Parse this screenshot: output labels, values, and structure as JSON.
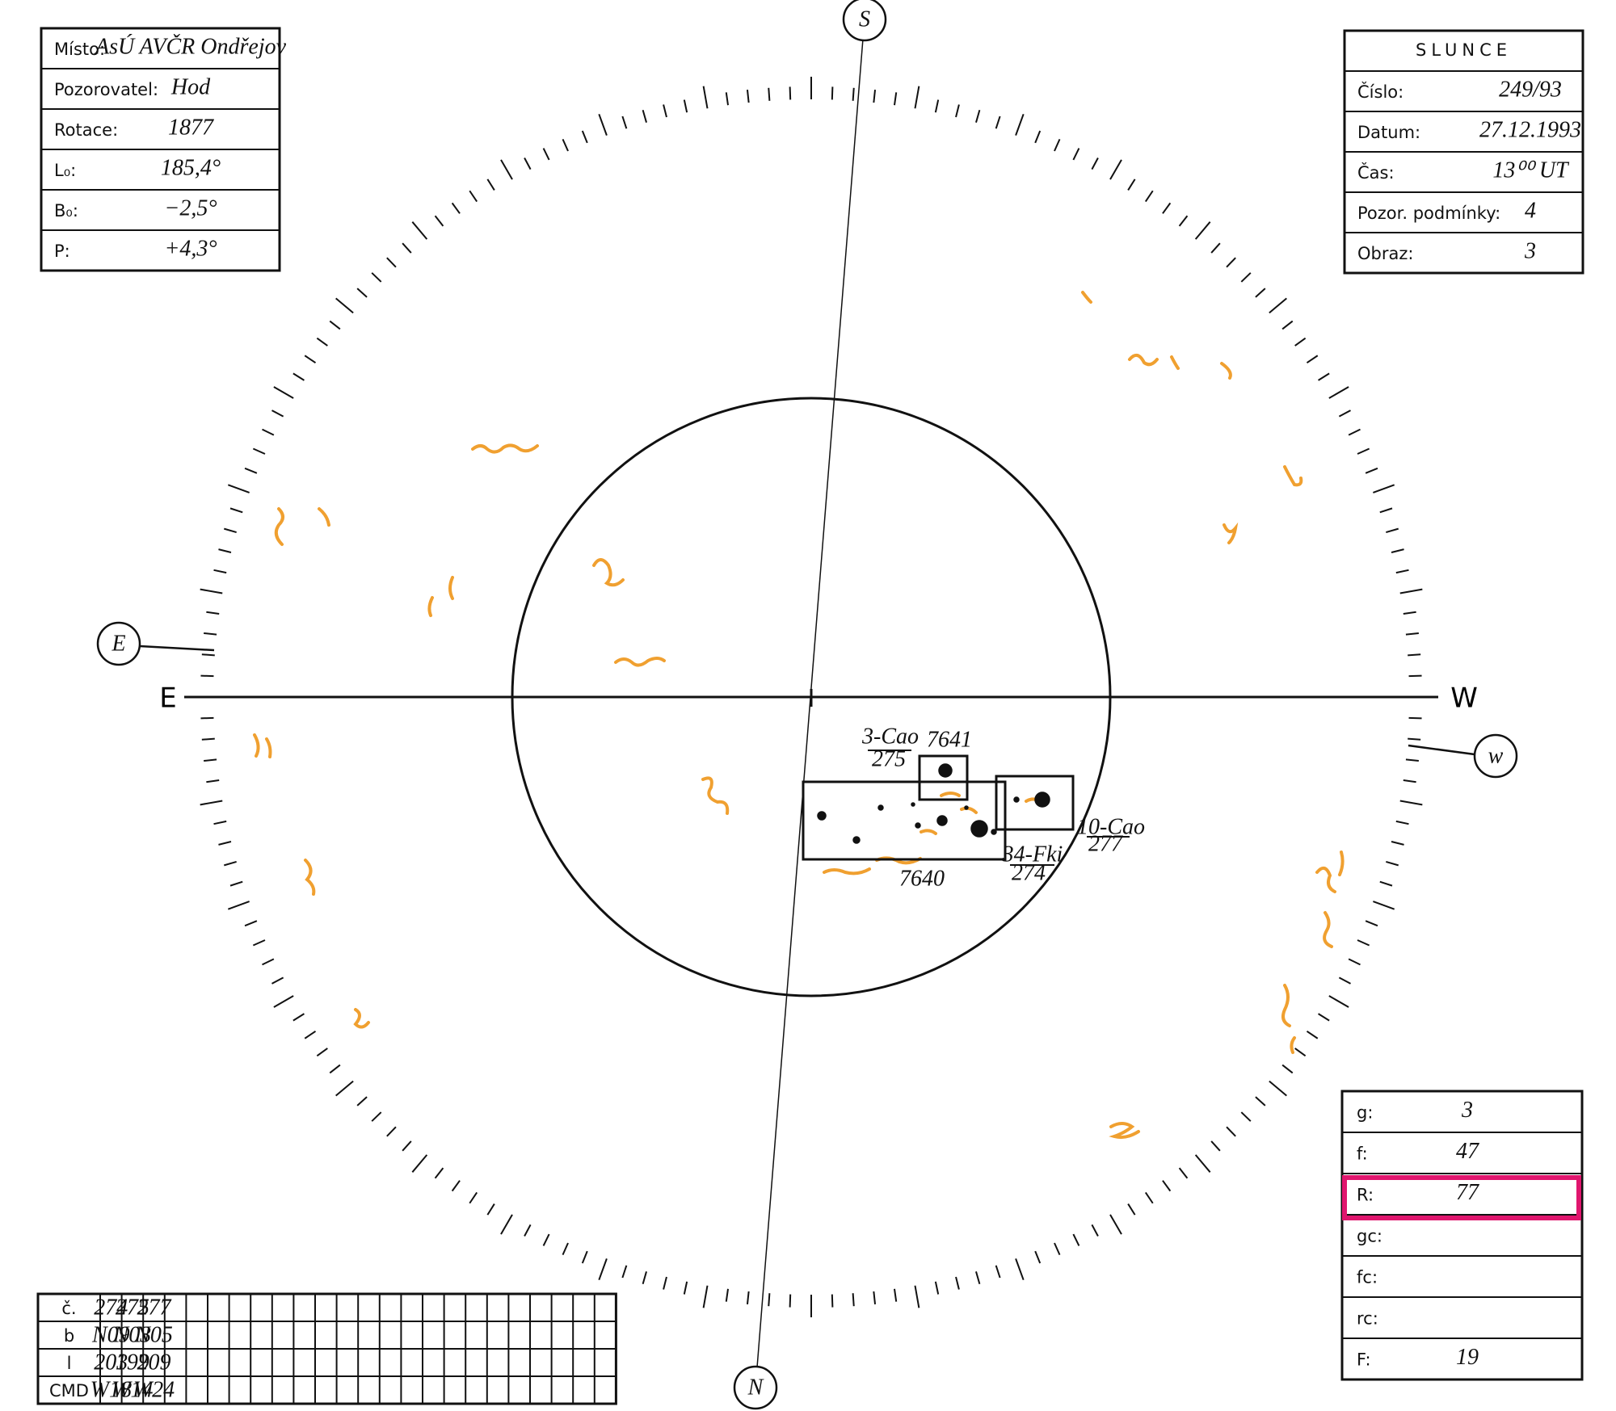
{
  "left_box": {
    "rows": [
      {
        "label": "Místo:",
        "value": "AsÚ AVČR Ondřejov"
      },
      {
        "label": "Pozorovatel:",
        "value": "Hod"
      },
      {
        "label": "Rotace:",
        "value": "1877"
      },
      {
        "label": "L₀:",
        "value": "185,4°"
      },
      {
        "label": "B₀:",
        "value": "−2,5°"
      },
      {
        "label": "P:",
        "value": "+4,3°"
      }
    ]
  },
  "right_box": {
    "title": "SLUNCE",
    "rows": [
      {
        "label": "Číslo:",
        "value": "249/93"
      },
      {
        "label": "Datum:",
        "value": "27.12.1993"
      },
      {
        "label": "Čas:",
        "value": "13⁰⁰ UT"
      },
      {
        "label": "Pozor. podmínky:",
        "value": "4"
      },
      {
        "label": "Obraz:",
        "value": "3"
      }
    ]
  },
  "stats_box": {
    "rows": [
      {
        "label": "g:",
        "value": "3"
      },
      {
        "label": "f:",
        "value": "47"
      },
      {
        "label": "R:",
        "value": "77"
      },
      {
        "label": "gc:",
        "value": null
      },
      {
        "label": "fc:",
        "value": null
      },
      {
        "label": "rc:",
        "value": null
      },
      {
        "label": "F:",
        "value": "19"
      }
    ]
  },
  "compass": {
    "south": "S",
    "north": "N",
    "east_marker": "E",
    "west_marker": "w",
    "east": "E",
    "west": "W"
  },
  "groups": [
    {
      "class": "3-Cao",
      "number": "275",
      "noaa": "7641"
    },
    {
      "class": "10-Cao",
      "number": "277"
    },
    {
      "class": "34-Fki",
      "number": "274",
      "noaa": "7640"
    }
  ],
  "table": {
    "rows": [
      [
        "č.",
        "274",
        "275",
        "277"
      ],
      [
        "b",
        "N09",
        "N03",
        "N05"
      ],
      [
        "l",
        "203",
        "199",
        "209"
      ],
      [
        "CMD",
        "W18",
        "W14",
        "W24"
      ]
    ]
  }
}
